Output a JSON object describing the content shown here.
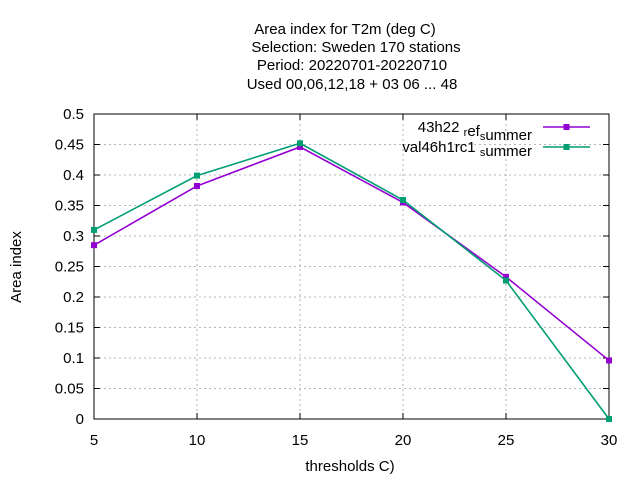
{
  "chart_data": {
    "type": "line",
    "title_lines": [
      "Area index  for T2m (deg C)",
      "Selection: Sweden     170 stations",
      "Period: 20220701-20220710",
      "Used  00,06,12,18  + 03 06 ... 48"
    ],
    "xlabel": "thresholds C)",
    "ylabel": "Area index",
    "x": [
      5,
      10,
      15,
      20,
      25,
      30
    ],
    "xlim": [
      5,
      30
    ],
    "ylim": [
      0,
      0.5
    ],
    "xticks": [
      5,
      10,
      15,
      20,
      25,
      30
    ],
    "yticks": [
      0,
      0.05,
      0.1,
      0.15,
      0.2,
      0.25,
      0.3,
      0.35,
      0.4,
      0.45,
      0.5
    ],
    "ytick_labels": [
      "0",
      "0.05",
      "0.1",
      "0.15",
      "0.2",
      "0.25",
      "0.3",
      "0.35",
      "0.4",
      "0.45",
      "0.5"
    ],
    "grid": true,
    "legend_position": "top-right",
    "series": [
      {
        "legend_main": "43h22",
        "legend_parts": [
          {
            "text": "43h22 ",
            "sub": false
          },
          {
            "text": "r",
            "sub": true
          },
          {
            "text": "ef",
            "sub": false
          },
          {
            "text": "s",
            "sub": true
          },
          {
            "text": "ummer",
            "sub": false
          }
        ],
        "color": "#9400d3",
        "values": [
          0.285,
          0.382,
          0.446,
          0.355,
          0.233,
          0.096
        ]
      },
      {
        "legend_main": "val46h1rc1",
        "legend_parts": [
          {
            "text": "val46h1rc1 ",
            "sub": false
          },
          {
            "text": "s",
            "sub": true
          },
          {
            "text": "ummer",
            "sub": false
          }
        ],
        "color": "#009e73",
        "values": [
          0.31,
          0.399,
          0.452,
          0.359,
          0.227,
          0.0
        ]
      }
    ]
  }
}
